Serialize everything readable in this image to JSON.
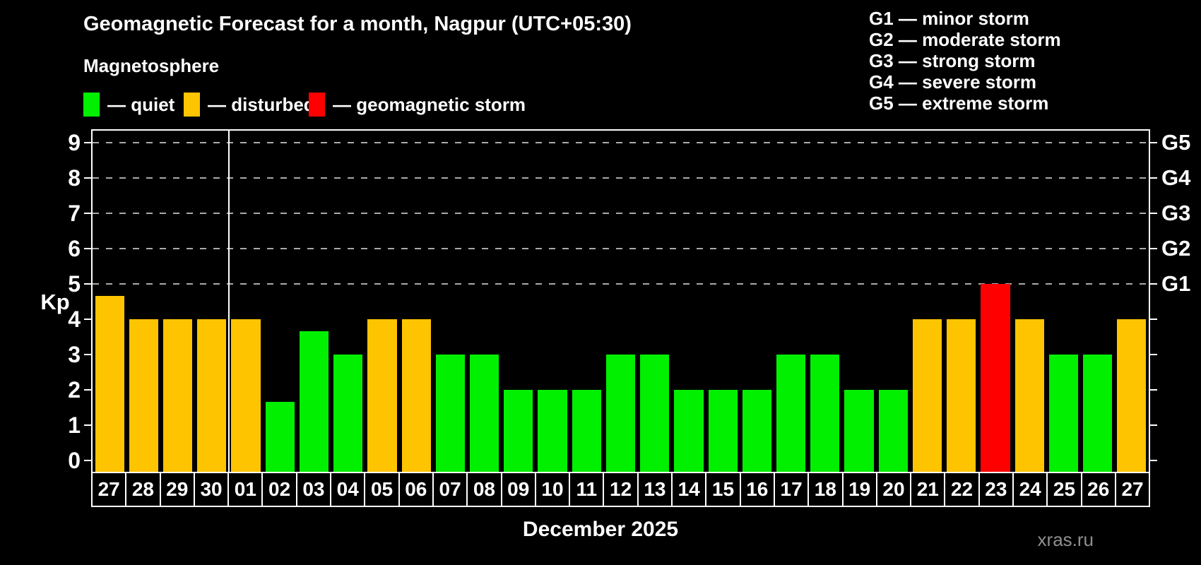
{
  "header": {
    "title": "Geomagnetic Forecast for a month, Nagpur (UTC+05:30)",
    "subtitle": "Magnetosphere"
  },
  "legend": {
    "items": [
      {
        "label": "— quiet",
        "status": "quiet"
      },
      {
        "label": "— disturbed",
        "status": "disturbed"
      },
      {
        "label": "— geomagnetic storm",
        "status": "storm"
      }
    ]
  },
  "g_legend": {
    "lines": [
      "G1 — minor storm",
      "G2 — moderate storm",
      "G3 — strong storm",
      "G4 — severe storm",
      "G5 — extreme storm"
    ]
  },
  "palette": {
    "quiet": "#00f000",
    "disturbed": "#ffc400",
    "storm": "#ff0000",
    "axis": "#ffffff",
    "grid": "#aaaaaa"
  },
  "chart_data": {
    "type": "bar",
    "title": "Geomagnetic Forecast for a month, Nagpur (UTC+05:30)",
    "xlabel": "December 2025",
    "ylabel": "Kp",
    "ylim": [
      0,
      9
    ],
    "y_ticks": [
      0,
      1,
      2,
      3,
      4,
      5,
      6,
      7,
      8,
      9
    ],
    "g_levels": [
      {
        "kp": 5,
        "label": "G1"
      },
      {
        "kp": 6,
        "label": "G2"
      },
      {
        "kp": 7,
        "label": "G3"
      },
      {
        "kp": 8,
        "label": "G4"
      },
      {
        "kp": 9,
        "label": "G5"
      }
    ],
    "categories": [
      "27",
      "28",
      "29",
      "30",
      "01",
      "02",
      "03",
      "04",
      "05",
      "06",
      "07",
      "08",
      "09",
      "10",
      "11",
      "12",
      "13",
      "14",
      "15",
      "16",
      "17",
      "18",
      "19",
      "20",
      "21",
      "22",
      "23",
      "24",
      "25",
      "26",
      "27"
    ],
    "values": [
      4.67,
      4,
      4,
      4,
      4,
      1.67,
      3.67,
      3,
      4,
      4,
      3,
      3,
      2,
      2,
      2,
      3,
      3,
      2,
      2,
      2,
      3,
      3,
      2,
      2,
      4,
      4,
      5,
      4,
      3,
      3,
      4
    ],
    "statuses": [
      "disturbed",
      "disturbed",
      "disturbed",
      "disturbed",
      "disturbed",
      "quiet",
      "quiet",
      "quiet",
      "disturbed",
      "disturbed",
      "quiet",
      "quiet",
      "quiet",
      "quiet",
      "quiet",
      "quiet",
      "quiet",
      "quiet",
      "quiet",
      "quiet",
      "quiet",
      "quiet",
      "quiet",
      "quiet",
      "disturbed",
      "disturbed",
      "storm",
      "disturbed",
      "quiet",
      "quiet",
      "disturbed"
    ],
    "month_boundary_after_index": 3,
    "month_label": "December 2025",
    "grid": "dashed horizontal lines at G levels (Kp 5-9)",
    "legend_position": "top-left"
  },
  "footer": {
    "watermark": "xras.ru"
  }
}
